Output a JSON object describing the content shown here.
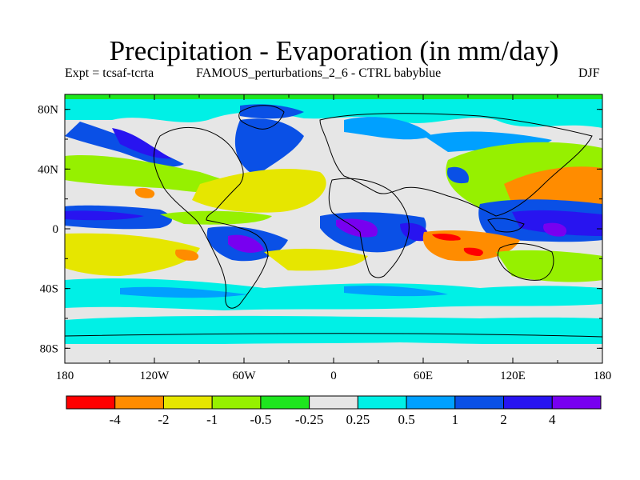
{
  "header": {
    "title": "Precipitation - Evaporation (in mm/day)",
    "experiment": "Expt = tcsaf-tcrta",
    "comparison": "FAMOUS_perturbations_2_6 - CTRL babyblue",
    "season": "DJF"
  },
  "axes": {
    "lat_labels": [
      "80N",
      "40N",
      "0",
      "40S",
      "80S"
    ],
    "lon_labels": [
      "180",
      "120W",
      "60W",
      "0",
      "60E",
      "120E",
      "180"
    ]
  },
  "colorbar": {
    "colors": [
      "#ff0000",
      "#ff8c00",
      "#e6e600",
      "#96f000",
      "#1ee61e",
      "#e6e6e6",
      "#00f0e6",
      "#00a0ff",
      "#0a50e6",
      "#2814f0",
      "#7800f0"
    ],
    "labels": [
      "-4",
      "-2",
      "-1",
      "-0.5",
      "-0.25",
      "0.25",
      "0.5",
      "1",
      "2",
      "4"
    ]
  },
  "palette": {
    "neutral": "#e6e6e6",
    "coast": "#000000"
  }
}
